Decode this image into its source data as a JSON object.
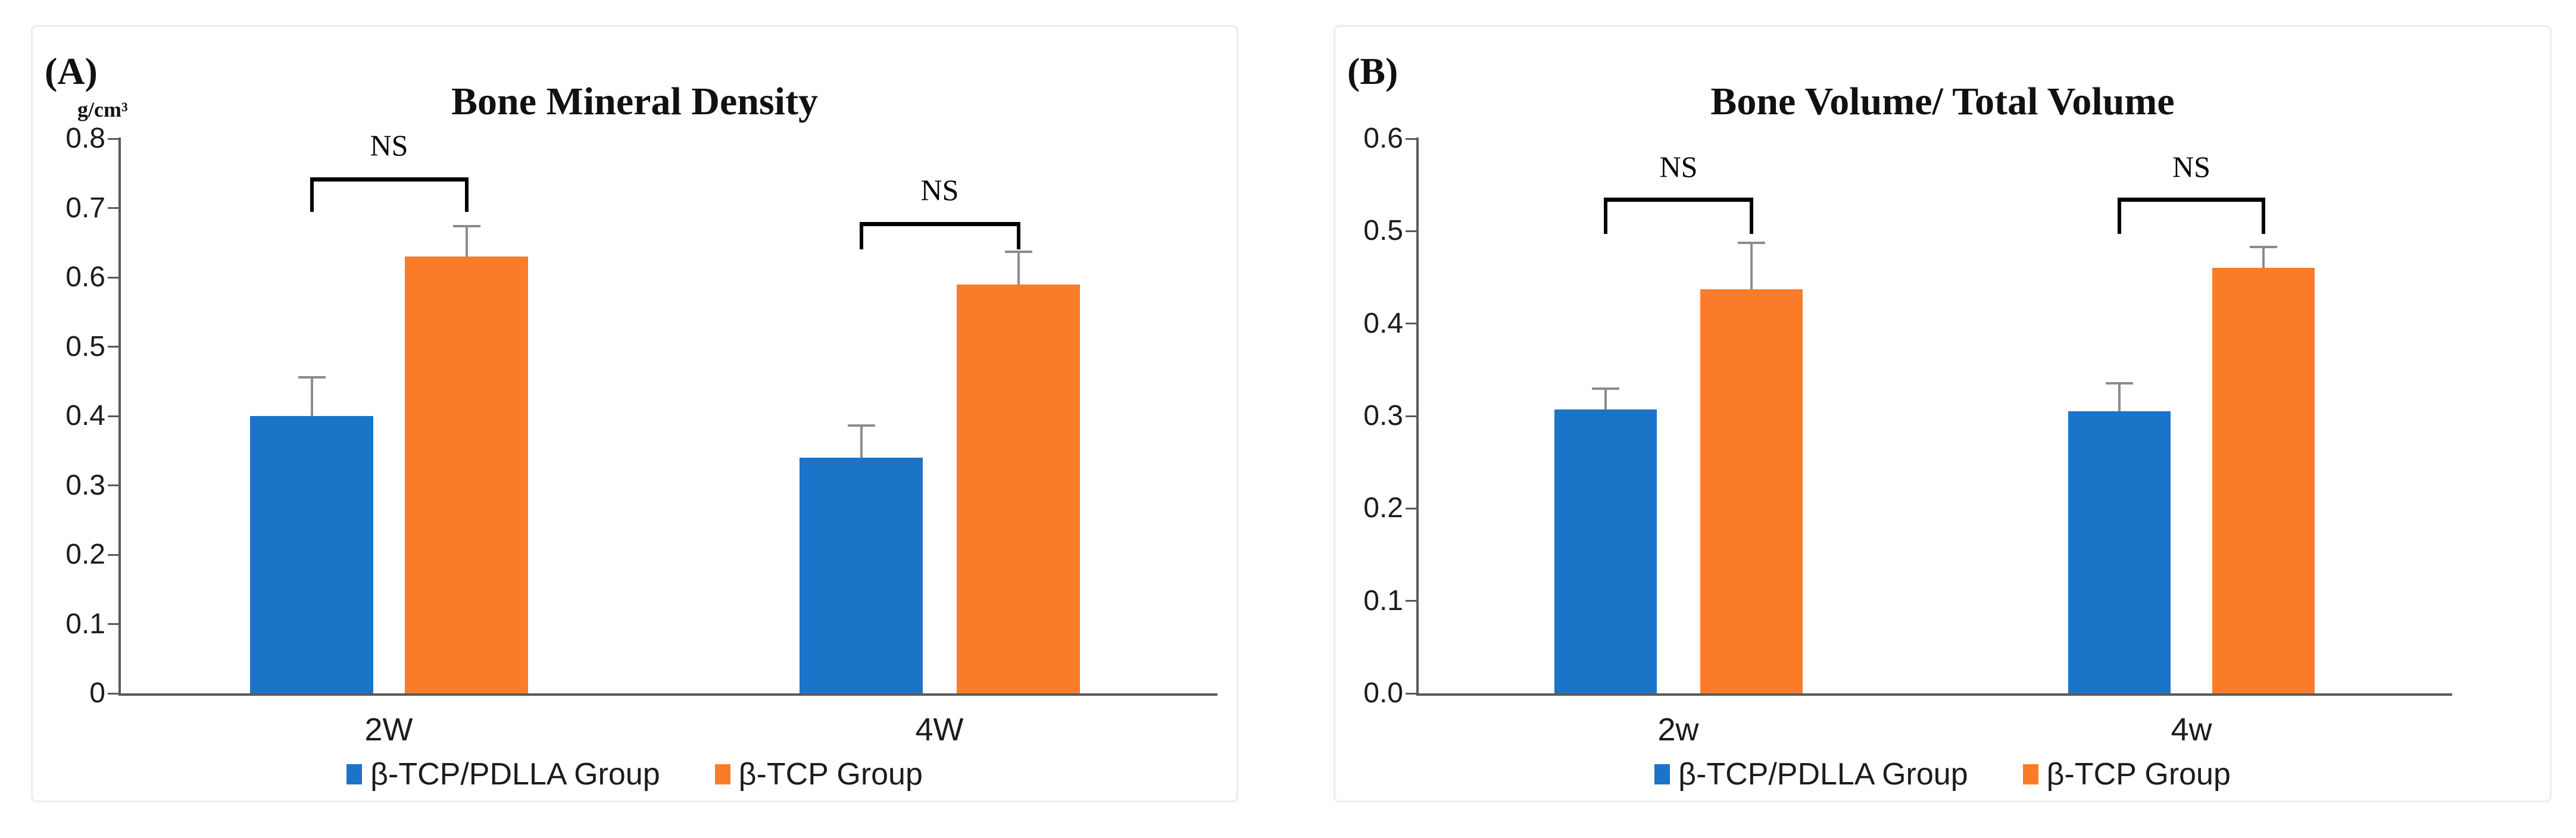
{
  "figure": {
    "background": "#ffffff",
    "panel_border_color": "#ececec",
    "colors": {
      "series": [
        "#1B74C8",
        "#FB7C28"
      ],
      "axis": "#595959",
      "error_bar": "#8C8C8C",
      "bracket": "#000000",
      "text": "#111111"
    }
  },
  "legend": {
    "items": [
      {
        "label": "β-TCP/PDLLA Group",
        "swatch_color": "#1B74C8"
      },
      {
        "label": "β-TCP Group",
        "swatch_color": "#FB7C28"
      }
    ]
  },
  "chart_data": [
    {
      "type": "bar",
      "panel_label": "(A)",
      "title": "Bone Mineral Density",
      "unit_label": "g/cm³",
      "categories": [
        "2W",
        "4W"
      ],
      "series": [
        {
          "name": "β-TCP/PDLLA Group",
          "values": [
            0.4,
            0.34
          ],
          "errors_plus": [
            0.055,
            0.045
          ]
        },
        {
          "name": "β-TCP Group",
          "values": [
            0.63,
            0.59
          ],
          "errors_plus": [
            0.043,
            0.046
          ]
        }
      ],
      "ylim": [
        0,
        0.8
      ],
      "ytick_labels": [
        "0",
        "0.1",
        "0.2",
        "0.3",
        "0.4",
        "0.5",
        "0.6",
        "0.7",
        "0.8"
      ],
      "grid": "off",
      "legend_position": "bottom-center",
      "annotations": [
        {
          "label": "NS",
          "category_index": 0,
          "bracket_top": 0.744,
          "bracket_leg_bottom": 0.694,
          "label_y": 0.788
        },
        {
          "label": "NS",
          "category_index": 1,
          "bracket_top": 0.68,
          "bracket_leg_bottom": 0.64,
          "label_y": 0.724
        }
      ]
    },
    {
      "type": "bar",
      "panel_label": "(B)",
      "title": "Bone Volume/ Total Volume",
      "unit_label": "",
      "categories": [
        "2w",
        "4w"
      ],
      "series": [
        {
          "name": "β-TCP/PDLLA Group",
          "values": [
            0.307,
            0.305
          ],
          "errors_plus": [
            0.022,
            0.03
          ]
        },
        {
          "name": "β-TCP Group",
          "values": [
            0.437,
            0.46
          ],
          "errors_plus": [
            0.05,
            0.022
          ]
        }
      ],
      "ylim": [
        0,
        0.6
      ],
      "ytick_labels": [
        "0.0",
        "0.1",
        "0.2",
        "0.3",
        "0.4",
        "0.5",
        "0.6"
      ],
      "grid": "off",
      "legend_position": "bottom-center",
      "annotations": [
        {
          "label": "NS",
          "category_index": 0,
          "bracket_top": 0.536,
          "bracket_leg_bottom": 0.497,
          "label_y": 0.568
        },
        {
          "label": "NS",
          "category_index": 1,
          "bracket_top": 0.536,
          "bracket_leg_bottom": 0.497,
          "label_y": 0.568
        }
      ]
    }
  ]
}
